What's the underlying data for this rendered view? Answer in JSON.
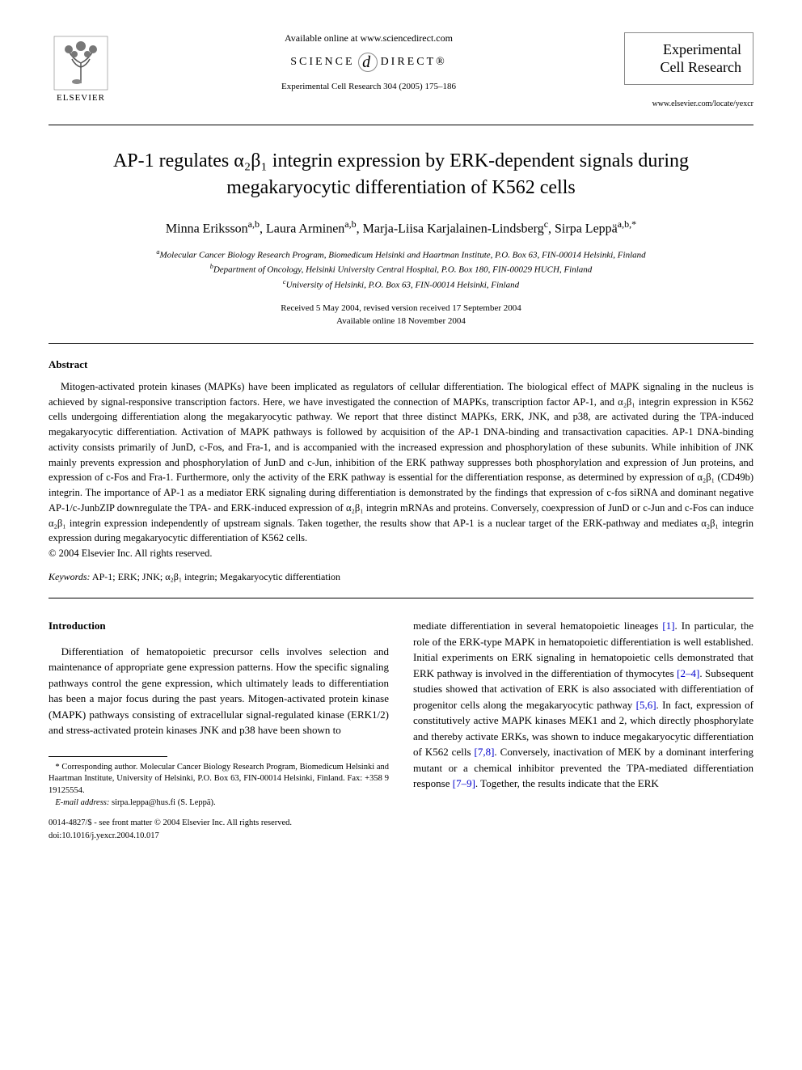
{
  "header": {
    "available_online": "Available online at www.sciencedirect.com",
    "science_direct_left": "SCIENCE",
    "science_direct_right": "DIRECT®",
    "journal_ref": "Experimental Cell Research 304 (2005) 175–186",
    "elsevier_label": "ELSEVIER",
    "journal_name_line1": "Experimental",
    "journal_name_line2": "Cell Research",
    "journal_url": "www.elsevier.com/locate/yexcr"
  },
  "title": "AP-1 regulates α₂β₁ integrin expression by ERK-dependent signals during megakaryocytic differentiation of K562 cells",
  "authors_html": "Minna Eriksson<sup>a,b</sup>, Laura Arminen<sup>a,b</sup>, Marja-Liisa Karjalainen-Lindsberg<sup>c</sup>, Sirpa Leppä<sup>a,b,*</sup>",
  "affiliations": {
    "a": "Molecular Cancer Biology Research Program, Biomedicum Helsinki and Haartman Institute, P.O. Box 63, FIN-00014 Helsinki, Finland",
    "b": "Department of Oncology, Helsinki University Central Hospital, P.O. Box 180, FIN-00029 HUCH, Finland",
    "c": "University of Helsinki, P.O. Box 63, FIN-00014 Helsinki, Finland"
  },
  "dates": {
    "received": "Received 5 May 2004, revised version received 17 September 2004",
    "available": "Available online 18 November 2004"
  },
  "abstract": {
    "heading": "Abstract",
    "body": "Mitogen-activated protein kinases (MAPKs) have been implicated as regulators of cellular differentiation. The biological effect of MAPK signaling in the nucleus is achieved by signal-responsive transcription factors. Here, we have investigated the connection of MAPKs, transcription factor AP-1, and α₂β₁ integrin expression in K562 cells undergoing differentiation along the megakaryocytic pathway. We report that three distinct MAPKs, ERK, JNK, and p38, are activated during the TPA-induced megakaryocytic differentiation. Activation of MAPK pathways is followed by acquisition of the AP-1 DNA-binding and transactivation capacities. AP-1 DNA-binding activity consists primarily of JunD, c-Fos, and Fra-1, and is accompanied with the increased expression and phosphorylation of these subunits. While inhibition of JNK mainly prevents expression and phosphorylation of JunD and c-Jun, inhibition of the ERK pathway suppresses both phosphorylation and expression of Jun proteins, and expression of c-Fos and Fra-1. Furthermore, only the activity of the ERK pathway is essential for the differentiation response, as determined by expression of α₂β₁ (CD49b) integrin. The importance of AP-1 as a mediator ERK signaling during differentiation is demonstrated by the findings that expression of c-fos siRNA and dominant negative AP-1/c-JunbZIP downregulate the TPA- and ERK-induced expression of α₂β₁ integrin mRNAs and proteins. Conversely, coexpression of JunD or c-Jun and c-Fos can induce α₂β₁ integrin expression independently of upstream signals. Taken together, the results show that AP-1 is a nuclear target of the ERK-pathway and mediates α₂β₁ integrin expression during megakaryocytic differentiation of K562 cells.",
    "copyright": "© 2004 Elsevier Inc. All rights reserved."
  },
  "keywords": {
    "label": "Keywords:",
    "text": "AP-1; ERK; JNK; α₂β₁ integrin; Megakaryocytic differentiation"
  },
  "introduction": {
    "heading": "Introduction",
    "col1": "Differentiation of hematopoietic precursor cells involves selection and maintenance of appropriate gene expression patterns. How the specific signaling pathways control the gene expression, which ultimately leads to differentiation has been a major focus during the past years. Mitogen-activated protein kinase (MAPK) pathways consisting of extracellular signal-regulated kinase (ERK1/2) and stress-activated protein kinases JNK and p38 have been shown to",
    "col2_parts": [
      {
        "type": "text",
        "value": "mediate differentiation in several hematopoietic lineages "
      },
      {
        "type": "ref",
        "value": "[1]"
      },
      {
        "type": "text",
        "value": ". In particular, the role of the ERK-type MAPK in hematopoietic differentiation is well established. Initial experiments on ERK signaling in hematopoietic cells demonstrated that ERK pathway is involved in the differentiation of thymocytes "
      },
      {
        "type": "ref",
        "value": "[2–4]"
      },
      {
        "type": "text",
        "value": ". Subsequent studies showed that activation of ERK is also associated with differentiation of progenitor cells along the megakaryocytic pathway "
      },
      {
        "type": "ref",
        "value": "[5,6]"
      },
      {
        "type": "text",
        "value": ". In fact, expression of constitutively active MAPK kinases MEK1 and 2, which directly phosphorylate and thereby activate ERKs, was shown to induce megakaryocytic differentiation of K562 cells "
      },
      {
        "type": "ref",
        "value": "[7,8]"
      },
      {
        "type": "text",
        "value": ". Conversely, inactivation of MEK by a dominant interfering mutant or a chemical inhibitor prevented the TPA-mediated differentiation response "
      },
      {
        "type": "ref",
        "value": "[7–9]"
      },
      {
        "type": "text",
        "value": ". Together, the results indicate that the ERK"
      }
    ]
  },
  "footnotes": {
    "corresponding": "* Corresponding author. Molecular Cancer Biology Research Program, Biomedicum Helsinki and Haartman Institute, University of Helsinki, P.O. Box 63, FIN-00014 Helsinki, Finland. Fax: +358 9 19125554.",
    "email_label": "E-mail address:",
    "email": "sirpa.leppa@hus.fi (S. Leppä)."
  },
  "footer": {
    "line1": "0014-4827/$ - see front matter © 2004 Elsevier Inc. All rights reserved.",
    "line2": "doi:10.1016/j.yexcr.2004.10.017"
  },
  "colors": {
    "link": "#0000cc",
    "text": "#000000",
    "border": "#888888"
  }
}
